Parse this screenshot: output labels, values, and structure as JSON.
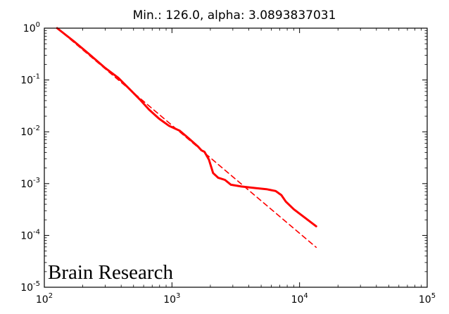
{
  "chart_data": {
    "type": "line",
    "title": "Min.: 126.0, alpha: 3.0893837031",
    "xlabel": "",
    "ylabel": "",
    "xscale": "log",
    "yscale": "log",
    "xlim": [
      100,
      100000
    ],
    "ylim": [
      1e-05,
      1
    ],
    "grid": false,
    "x_ticks": [
      {
        "value": 100,
        "base": "10",
        "exp": "2"
      },
      {
        "value": 1000,
        "base": "10",
        "exp": "3"
      },
      {
        "value": 10000,
        "base": "10",
        "exp": "4"
      },
      {
        "value": 100000,
        "base": "10",
        "exp": "5"
      }
    ],
    "y_ticks": [
      {
        "value": 1,
        "base": "10",
        "exp": "0"
      },
      {
        "value": 0.1,
        "base": "10",
        "exp": "-1"
      },
      {
        "value": 0.01,
        "base": "10",
        "exp": "-2"
      },
      {
        "value": 0.001,
        "base": "10",
        "exp": "-3"
      },
      {
        "value": 0.0001,
        "base": "10",
        "exp": "-4"
      },
      {
        "value": 1e-05,
        "base": "10",
        "exp": "-5"
      }
    ],
    "series": [
      {
        "style": "solid",
        "color": "#ff0000",
        "x": [
          126,
          170,
          230,
          300,
          380,
          480,
          560,
          660,
          790,
          950,
          1150,
          1350,
          1600,
          1700,
          1800,
          1950,
          2100,
          2300,
          2600,
          2900,
          3500,
          4500,
          5500,
          6500,
          7200,
          7800,
          9000,
          11000,
          13500
        ],
        "y": [
          1.0,
          0.56,
          0.3,
          0.17,
          0.11,
          0.062,
          0.042,
          0.027,
          0.018,
          0.013,
          0.0105,
          0.0075,
          0.0052,
          0.0044,
          0.0041,
          0.0029,
          0.0016,
          0.0013,
          0.00118,
          0.00095,
          0.00088,
          0.00082,
          0.00078,
          0.00072,
          0.0006,
          0.00045,
          0.00032,
          0.00022,
          0.00015
        ]
      },
      {
        "style": "dashed",
        "color": "#ff0000",
        "x": [
          126,
          13500
        ],
        "y": [
          1.0,
          5.9e-05
        ]
      }
    ],
    "annotations": [
      "Brain Research"
    ]
  },
  "colors": {
    "line": "#ff0000",
    "axes": "#000000",
    "background": "#ffffff"
  }
}
